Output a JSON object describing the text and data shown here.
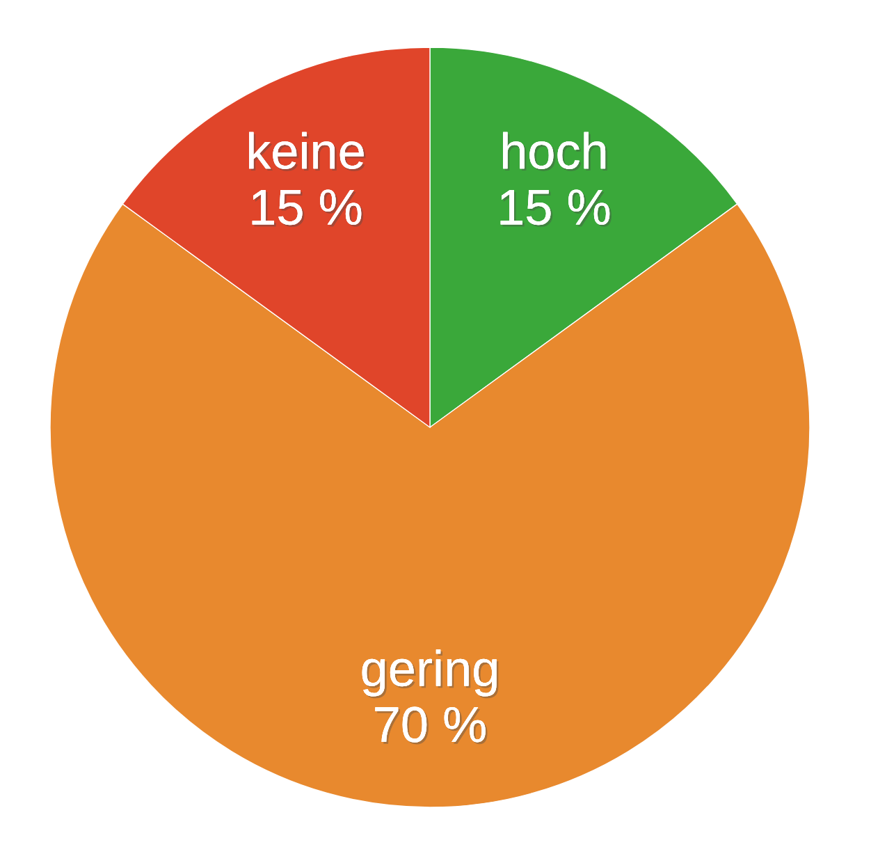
{
  "chart_data": {
    "type": "pie",
    "categories": [
      "hoch",
      "gering",
      "keine"
    ],
    "values": [
      15,
      70,
      15
    ],
    "value_labels": [
      "15 %",
      "70 %",
      "15 %"
    ],
    "colors": [
      "#3aa83a",
      "#e8892e",
      "#e0452a"
    ]
  }
}
